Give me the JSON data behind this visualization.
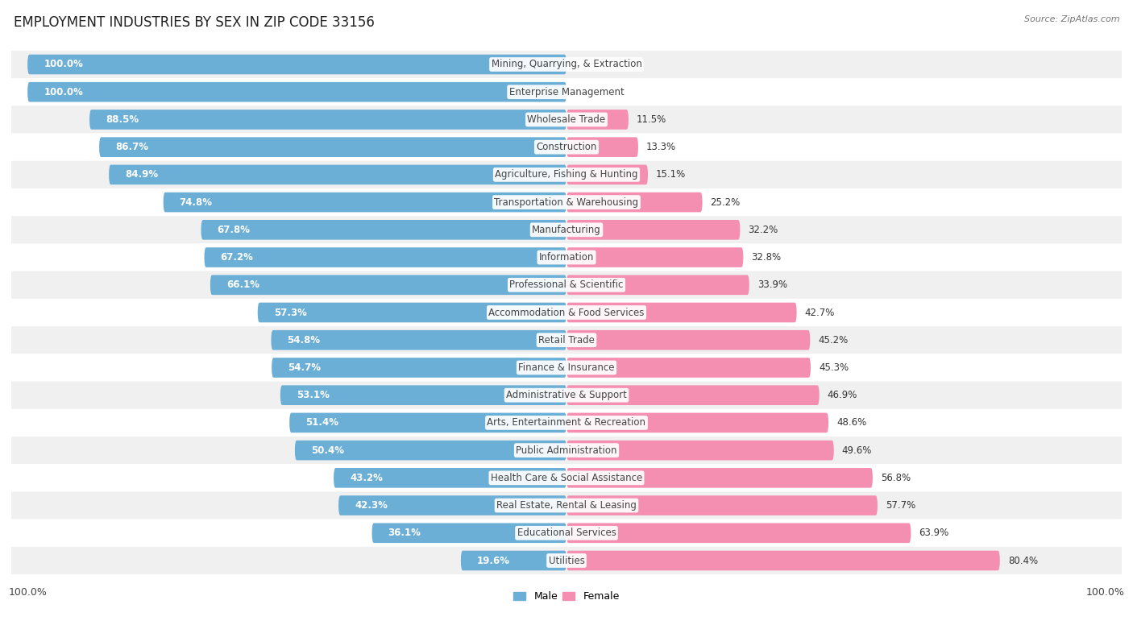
{
  "title": "EMPLOYMENT INDUSTRIES BY SEX IN ZIP CODE 33156",
  "source": "Source: ZipAtlas.com",
  "industries": [
    "Mining, Quarrying, & Extraction",
    "Enterprise Management",
    "Wholesale Trade",
    "Construction",
    "Agriculture, Fishing & Hunting",
    "Transportation & Warehousing",
    "Manufacturing",
    "Information",
    "Professional & Scientific",
    "Accommodation & Food Services",
    "Retail Trade",
    "Finance & Insurance",
    "Administrative & Support",
    "Arts, Entertainment & Recreation",
    "Public Administration",
    "Health Care & Social Assistance",
    "Real Estate, Rental & Leasing",
    "Educational Services",
    "Utilities"
  ],
  "male_pct": [
    100.0,
    100.0,
    88.5,
    86.7,
    84.9,
    74.8,
    67.8,
    67.2,
    66.1,
    57.3,
    54.8,
    54.7,
    53.1,
    51.4,
    50.4,
    43.2,
    42.3,
    36.1,
    19.6
  ],
  "female_pct": [
    0.0,
    0.0,
    11.5,
    13.3,
    15.1,
    25.2,
    32.2,
    32.8,
    33.9,
    42.7,
    45.2,
    45.3,
    46.9,
    48.6,
    49.6,
    56.8,
    57.7,
    63.9,
    80.4
  ],
  "male_color": "#6baed6",
  "female_color": "#f48fb1",
  "row_color_even": "#f0f0f0",
  "row_color_odd": "#ffffff",
  "title_fontsize": 12,
  "label_fontsize": 8.5,
  "pct_fontsize": 8.5,
  "tick_fontsize": 9,
  "legend_fontsize": 9,
  "source_fontsize": 8
}
